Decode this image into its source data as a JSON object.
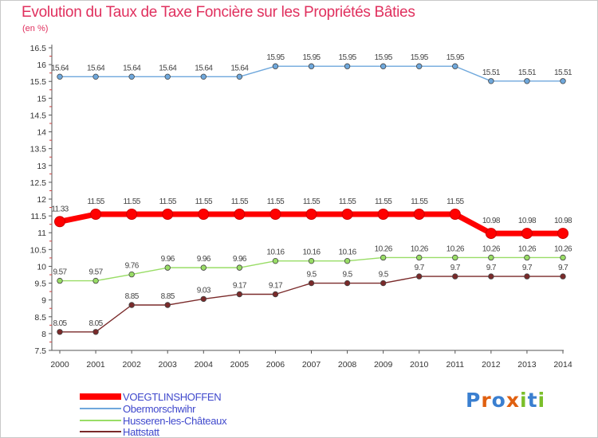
{
  "chart_data": {
    "type": "line",
    "title": "Evolution du Taux de Taxe Foncière sur les Propriétés Bâties",
    "unit_label": "(en %)",
    "xlabel": "",
    "ylabel": "(en %)",
    "x": [
      "2000",
      "2001",
      "2002",
      "2003",
      "2004",
      "2005",
      "2006",
      "2007",
      "2008",
      "2009",
      "2010",
      "2011",
      "2012",
      "2013",
      "2014"
    ],
    "ylim": [
      7.5,
      16.5
    ],
    "yticks": [
      "7.5",
      "8",
      "8.5",
      "9",
      "9.5",
      "10",
      "10.5",
      "11",
      "11.5",
      "12",
      "12.5",
      "13",
      "13.5",
      "14",
      "14.5",
      "15",
      "15.5",
      "16",
      "16.5"
    ],
    "grid": false,
    "series": [
      {
        "name": "VOEGTLINSHOFFEN",
        "color": "#ff0000",
        "values": [
          11.33,
          11.55,
          11.55,
          11.55,
          11.55,
          11.55,
          11.55,
          11.55,
          11.55,
          11.55,
          11.55,
          11.55,
          10.98,
          10.98,
          10.98
        ],
        "labels": [
          "11.33",
          "11.55",
          "11.55",
          "11.55",
          "11.55",
          "11.55",
          "11.55",
          "11.55",
          "11.55",
          "11.55",
          "11.55",
          "11.55",
          "10.98",
          "10.98",
          "10.98"
        ]
      },
      {
        "name": "Obermorschwihr",
        "color": "#6fa8dc",
        "values": [
          15.64,
          15.64,
          15.64,
          15.64,
          15.64,
          15.64,
          15.95,
          15.95,
          15.95,
          15.95,
          15.95,
          15.95,
          15.51,
          15.51,
          15.51
        ],
        "labels": [
          "15.64",
          "15.64",
          "15.64",
          "15.64",
          "15.64",
          "15.64",
          "15.95",
          "15.95",
          "15.95",
          "15.95",
          "15.95",
          "15.95",
          "15.51",
          "15.51",
          "15.51"
        ]
      },
      {
        "name": "Husseren-les-Châteaux",
        "color": "#99dd66",
        "values": [
          9.57,
          9.57,
          9.76,
          9.96,
          9.96,
          9.96,
          10.16,
          10.16,
          10.16,
          10.26,
          10.26,
          10.26,
          10.26,
          10.26,
          10.26
        ],
        "labels": [
          "9.57",
          "9.57",
          "9.76",
          "9.96",
          "9.96",
          "9.96",
          "10.16",
          "10.16",
          "10.16",
          "10.26",
          "10.26",
          "10.26",
          "10.26",
          "10.26",
          "10.26"
        ]
      },
      {
        "name": "Hattstatt",
        "color": "#7a2a2a",
        "values": [
          8.05,
          8.05,
          8.85,
          8.85,
          9.03,
          9.17,
          9.17,
          9.5,
          9.5,
          9.5,
          9.7,
          9.7,
          9.7,
          9.7,
          9.7
        ],
        "labels": [
          "8.05",
          "8.05",
          "8.85",
          "8.85",
          "9.03",
          "9.17",
          "9.17",
          "9.5",
          "9.5",
          "9.5",
          "9.7",
          "9.7",
          "9.7",
          "9.7",
          "9.7"
        ]
      }
    ],
    "legend_position": "bottom-left"
  },
  "brand": {
    "letters": [
      "P",
      "r",
      "o",
      "x",
      "i",
      "t",
      "i"
    ],
    "colors": [
      "#3a7fd0",
      "#e06010",
      "#3a7fd0",
      "#e06010",
      "#7bbf2a",
      "#3a7fd0",
      "#7bbf2a"
    ]
  }
}
